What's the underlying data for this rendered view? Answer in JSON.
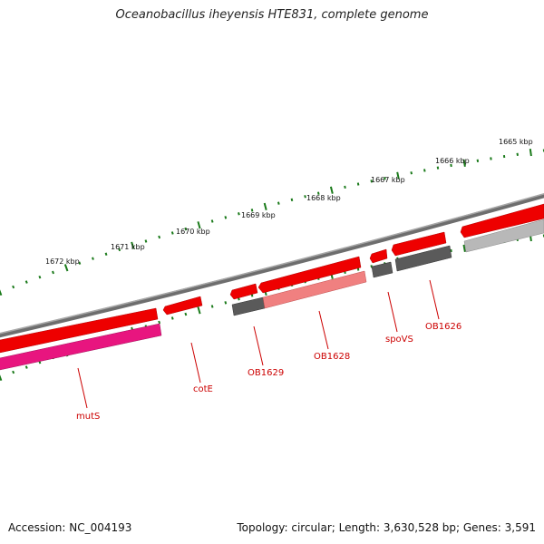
{
  "title": "Oceanobacillus iheyensis HTE831, complete genome",
  "footer": {
    "accession": "Accession: NC_004193",
    "summary": "Topology: circular; Length: 3,630,528 bp; Genes: 3,591"
  },
  "colors": {
    "backbone": "#7a7a7a",
    "gene_forward": "#ee0000",
    "gene_light": "#f08080",
    "gene_magenta": "#e8157f",
    "gene_dark": "#5a5a5a",
    "gene_silver": "#b8b8b8",
    "tick": "#1a7a1a",
    "label": "#cc0000"
  },
  "kbp_labels": [
    "1665 kbp",
    "1666 kbp",
    "1667 kbp",
    "1668 kbp",
    "1669 kbp",
    "1670 kbp",
    "1671 kbp",
    "1672 kbp"
  ],
  "gene_labels": [
    "mutS",
    "cotE",
    "OB1629",
    "OB1628",
    "spoVS",
    "OB1626"
  ]
}
